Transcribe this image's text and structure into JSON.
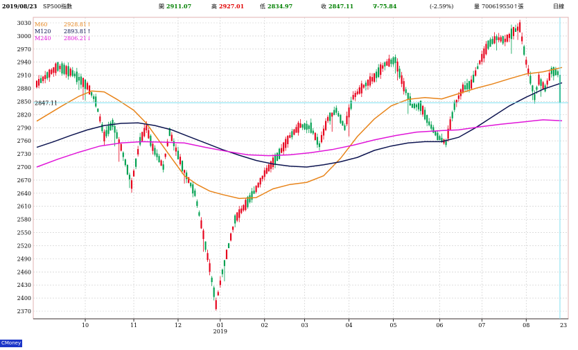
{
  "header": {
    "date": "2019/08/23",
    "symbol": "SP500指數",
    "open_label": "開",
    "open_value": "2911.07",
    "high_label": "高",
    "high_value": "2927.01",
    "low_label": "低",
    "low_value": "2834.97",
    "close_label": "收",
    "close_value": "2847.11",
    "change": "∇-75.84",
    "change_pct": "(-2.59%)",
    "volume_label": "量",
    "volume_value": "700619550↑張",
    "period": "日線"
  },
  "legend": [
    {
      "name": "M60",
      "value": "2928.81↑",
      "color": "#e8841a"
    },
    {
      "name": "M120",
      "value": "2893.81↑",
      "color": "#0d1450"
    },
    {
      "name": "M240",
      "value": "2806.21↓",
      "color": "#e015d8"
    }
  ],
  "last_price_label": "2847.11",
  "cursor_label": "23",
  "watermark": "CMoney",
  "colors": {
    "up": "#e6001a",
    "down": "#00a050",
    "frame": "#e0b0b0",
    "cursor": "#7fe0f0"
  },
  "chart_data": {
    "type": "candlestick",
    "ylim": [
      2350,
      3040
    ],
    "grid": true,
    "y_ticks": [
      3030,
      3000,
      2970,
      2940,
      2910,
      2880,
      2850,
      2820,
      2790,
      2760,
      2730,
      2700,
      2670,
      2640,
      2610,
      2580,
      2550,
      2520,
      2490,
      2460,
      2430,
      2400,
      2370
    ],
    "x_ticks": [
      {
        "label": "10",
        "day": 23
      },
      {
        "label": "11",
        "day": 46
      },
      {
        "label": "12",
        "day": 67
      },
      {
        "label": "01",
        "day": 87,
        "sub": "2019"
      },
      {
        "label": "02",
        "day": 108
      },
      {
        "label": "03",
        "day": 127
      },
      {
        "label": "04",
        "day": 148
      },
      {
        "label": "05",
        "day": 169
      },
      {
        "label": "06",
        "day": 191
      },
      {
        "label": "07",
        "day": 211
      },
      {
        "label": "08",
        "day": 232
      }
    ],
    "days": 249,
    "anchors": [
      [
        0,
        2890
      ],
      [
        10,
        2930
      ],
      [
        17,
        2915
      ],
      [
        24,
        2885
      ],
      [
        28,
        2850
      ],
      [
        32,
        2770
      ],
      [
        36,
        2800
      ],
      [
        40,
        2745
      ],
      [
        45,
        2660
      ],
      [
        49,
        2760
      ],
      [
        52,
        2790
      ],
      [
        55,
        2745
      ],
      [
        60,
        2700
      ],
      [
        63,
        2780
      ],
      [
        66,
        2740
      ],
      [
        70,
        2690
      ],
      [
        75,
        2640
      ],
      [
        79,
        2545
      ],
      [
        82,
        2470
      ],
      [
        85,
        2385
      ],
      [
        88,
        2460
      ],
      [
        94,
        2580
      ],
      [
        100,
        2620
      ],
      [
        104,
        2650
      ],
      [
        108,
        2685
      ],
      [
        115,
        2730
      ],
      [
        120,
        2770
      ],
      [
        125,
        2795
      ],
      [
        130,
        2790
      ],
      [
        134,
        2750
      ],
      [
        138,
        2810
      ],
      [
        142,
        2830
      ],
      [
        146,
        2790
      ],
      [
        150,
        2860
      ],
      [
        155,
        2885
      ],
      [
        160,
        2905
      ],
      [
        165,
        2935
      ],
      [
        170,
        2945
      ],
      [
        174,
        2885
      ],
      [
        178,
        2840
      ],
      [
        182,
        2840
      ],
      [
        186,
        2800
      ],
      [
        190,
        2770
      ],
      [
        194,
        2755
      ],
      [
        198,
        2840
      ],
      [
        202,
        2880
      ],
      [
        206,
        2890
      ],
      [
        210,
        2940
      ],
      [
        214,
        2980
      ],
      [
        218,
        2995
      ],
      [
        222,
        2990
      ],
      [
        226,
        3010
      ],
      [
        229,
        3020
      ],
      [
        232,
        2940
      ],
      [
        234,
        2900
      ],
      [
        236,
        2860
      ],
      [
        238,
        2900
      ],
      [
        241,
        2880
      ],
      [
        244,
        2920
      ],
      [
        247,
        2915
      ],
      [
        249,
        2847
      ]
    ],
    "final_candle": {
      "open": 2911.07,
      "high": 2927.01,
      "low": 2834.97,
      "close": 2847.11
    },
    "ma_lines": {
      "M60": [
        [
          0,
          2805
        ],
        [
          12,
          2840
        ],
        [
          20,
          2862
        ],
        [
          26,
          2874
        ],
        [
          32,
          2872
        ],
        [
          38,
          2855
        ],
        [
          46,
          2830
        ],
        [
          52,
          2800
        ],
        [
          58,
          2760
        ],
        [
          64,
          2720
        ],
        [
          70,
          2680
        ],
        [
          76,
          2660
        ],
        [
          82,
          2645
        ],
        [
          88,
          2637
        ],
        [
          96,
          2628
        ],
        [
          104,
          2630
        ],
        [
          112,
          2650
        ],
        [
          120,
          2660
        ],
        [
          128,
          2665
        ],
        [
          136,
          2680
        ],
        [
          144,
          2720
        ],
        [
          152,
          2770
        ],
        [
          160,
          2810
        ],
        [
          168,
          2840
        ],
        [
          176,
          2855
        ],
        [
          184,
          2859
        ],
        [
          192,
          2856
        ],
        [
          200,
          2868
        ],
        [
          208,
          2880
        ],
        [
          216,
          2890
        ],
        [
          224,
          2902
        ],
        [
          232,
          2913
        ],
        [
          240,
          2918
        ],
        [
          249,
          2928
        ]
      ],
      "M120": [
        [
          0,
          2745
        ],
        [
          8,
          2758
        ],
        [
          16,
          2772
        ],
        [
          24,
          2785
        ],
        [
          32,
          2795
        ],
        [
          40,
          2800
        ],
        [
          48,
          2801
        ],
        [
          56,
          2795
        ],
        [
          64,
          2785
        ],
        [
          72,
          2770
        ],
        [
          80,
          2755
        ],
        [
          88,
          2740
        ],
        [
          96,
          2727
        ],
        [
          104,
          2715
        ],
        [
          112,
          2707
        ],
        [
          120,
          2702
        ],
        [
          128,
          2700
        ],
        [
          136,
          2705
        ],
        [
          144,
          2712
        ],
        [
          152,
          2722
        ],
        [
          160,
          2738
        ],
        [
          168,
          2748
        ],
        [
          176,
          2755
        ],
        [
          184,
          2758
        ],
        [
          192,
          2758
        ],
        [
          200,
          2768
        ],
        [
          208,
          2790
        ],
        [
          216,
          2815
        ],
        [
          224,
          2840
        ],
        [
          232,
          2860
        ],
        [
          240,
          2878
        ],
        [
          249,
          2893
        ]
      ],
      "M240": [
        [
          0,
          2700
        ],
        [
          10,
          2718
        ],
        [
          20,
          2734
        ],
        [
          30,
          2748
        ],
        [
          40,
          2755
        ],
        [
          50,
          2758
        ],
        [
          60,
          2757
        ],
        [
          70,
          2755
        ],
        [
          80,
          2745
        ],
        [
          90,
          2736
        ],
        [
          100,
          2728
        ],
        [
          110,
          2726
        ],
        [
          120,
          2728
        ],
        [
          130,
          2733
        ],
        [
          140,
          2740
        ],
        [
          150,
          2750
        ],
        [
          160,
          2762
        ],
        [
          170,
          2772
        ],
        [
          180,
          2780
        ],
        [
          190,
          2783
        ],
        [
          200,
          2785
        ],
        [
          210,
          2792
        ],
        [
          220,
          2798
        ],
        [
          230,
          2803
        ],
        [
          240,
          2808
        ],
        [
          249,
          2806
        ]
      ]
    }
  }
}
